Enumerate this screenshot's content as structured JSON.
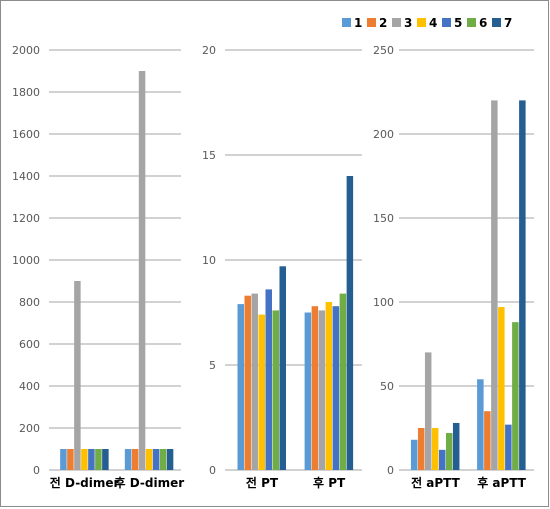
{
  "chart_data": {
    "type": "bar",
    "legend": {
      "placement": "top-right",
      "entries": [
        "1",
        "2",
        "3",
        "4",
        "5",
        "6",
        "7"
      ]
    },
    "series_colors": [
      "#5B9BD5",
      "#ED7D31",
      "#A5A5A5",
      "#FFC000",
      "#4472C4",
      "#70AD47",
      "#255E91"
    ],
    "panels": [
      {
        "categories": [
          "전 D-dimer",
          "후 D-dimer"
        ],
        "ylim": [
          0,
          2000
        ],
        "yticks": [
          "0",
          "200",
          "400",
          "600",
          "800",
          "1000",
          "1200",
          "1400",
          "1600",
          "1800",
          "2000"
        ],
        "series": [
          {
            "name": "1",
            "values": [
              100,
              100
            ]
          },
          {
            "name": "2",
            "values": [
              100,
              100
            ]
          },
          {
            "name": "3",
            "values": [
              900,
              1900
            ]
          },
          {
            "name": "4",
            "values": [
              100,
              100
            ]
          },
          {
            "name": "5",
            "values": [
              100,
              100
            ]
          },
          {
            "name": "6",
            "values": [
              100,
              100
            ]
          },
          {
            "name": "7",
            "values": [
              100,
              100
            ]
          }
        ]
      },
      {
        "categories": [
          "전 PT",
          "후 PT"
        ],
        "ylim": [
          0,
          20
        ],
        "yticks": [
          "0",
          "5",
          "10",
          "15",
          "20"
        ],
        "series": [
          {
            "name": "1",
            "values": [
              7.9,
              7.5
            ]
          },
          {
            "name": "2",
            "values": [
              8.3,
              7.8
            ]
          },
          {
            "name": "3",
            "values": [
              8.4,
              7.6
            ]
          },
          {
            "name": "4",
            "values": [
              7.4,
              8.0
            ]
          },
          {
            "name": "5",
            "values": [
              8.6,
              7.8
            ]
          },
          {
            "name": "6",
            "values": [
              7.6,
              8.4
            ]
          },
          {
            "name": "7",
            "values": [
              9.7,
              14.0
            ]
          }
        ]
      },
      {
        "categories": [
          "전 aPTT",
          "후 aPTT"
        ],
        "ylim": [
          0,
          250
        ],
        "yticks": [
          "0",
          "50",
          "100",
          "150",
          "200",
          "250"
        ],
        "series": [
          {
            "name": "1",
            "values": [
              18,
              54
            ]
          },
          {
            "name": "2",
            "values": [
              25,
              35
            ]
          },
          {
            "name": "3",
            "values": [
              70,
              220
            ]
          },
          {
            "name": "4",
            "values": [
              25,
              97
            ]
          },
          {
            "name": "5",
            "values": [
              12,
              27
            ]
          },
          {
            "name": "6",
            "values": [
              22,
              88
            ]
          },
          {
            "name": "7",
            "values": [
              28,
              220
            ]
          }
        ]
      }
    ]
  }
}
